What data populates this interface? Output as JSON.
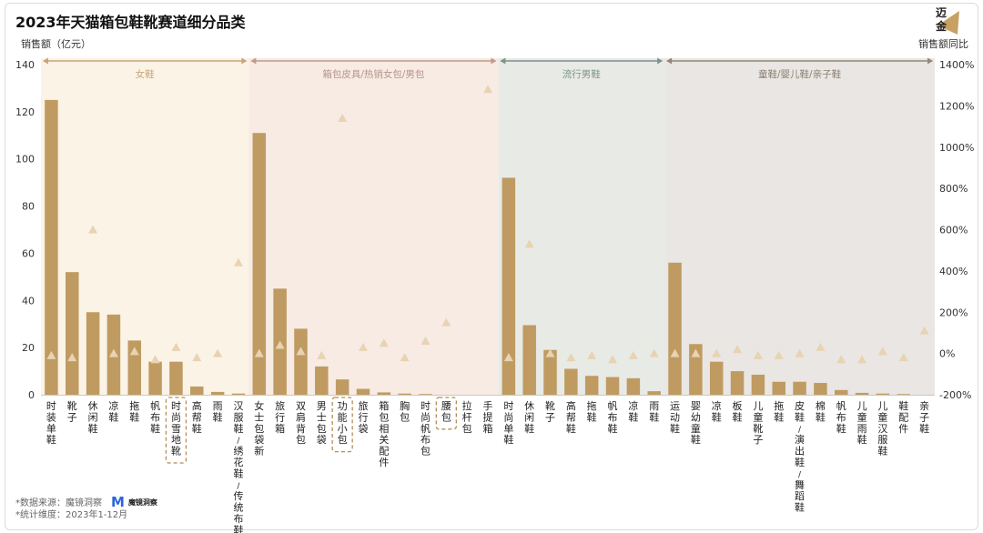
{
  "title": "2023年天猫箱包鞋靴赛道细分品类",
  "y_left_label": "销售额（亿元）",
  "y_right_label": "销售额同比",
  "logo_text": [
    "迈",
    "金"
  ],
  "footnotes": {
    "source_label": "*数据来源：",
    "source_name": "魔镜洞察",
    "brand_mark": "M",
    "brand_name": "魔镜洞察",
    "scope": "*统计维度：2023年1-12月"
  },
  "colors": {
    "bar": "#bf9b62",
    "triangle": "#e8d3b2",
    "highlight_box": "#b58c55",
    "axis_text": "#333333"
  },
  "chart_data": {
    "type": "bar",
    "categories": [
      "时装单鞋",
      "靴子",
      "休闲鞋",
      "凉鞋",
      "拖鞋",
      "帆布鞋",
      "时尚雪地靴",
      "高帮鞋",
      "雨鞋",
      "汉服鞋/绣花鞋/传统布鞋",
      "女士包袋新",
      "旅行箱",
      "双肩背包",
      "男士包袋",
      "功能小包",
      "旅行袋",
      "箱包相关配件",
      "胸包",
      "时尚帆布包",
      "腰包",
      "拉杆包",
      "手提箱",
      "时尚单鞋",
      "休闲鞋",
      "靴子",
      "高帮鞋",
      "拖鞋",
      "帆布鞋",
      "凉鞋",
      "雨鞋",
      "运动鞋",
      "婴幼童鞋",
      "凉鞋",
      "板鞋",
      "儿童靴子",
      "拖鞋",
      "皮鞋/演出鞋/舞蹈鞋",
      "棉鞋",
      "帆布鞋",
      "儿童雨鞋",
      "儿童汉服鞋",
      "鞋配件",
      "亲子鞋"
    ],
    "series": [
      {
        "name": "销售额（亿元）",
        "axis": "left",
        "values": [
          125,
          52,
          35,
          34,
          23,
          14,
          14,
          3.5,
          1.2,
          0.5,
          111,
          45,
          28,
          12,
          6.5,
          2.5,
          1,
          0.5,
          0.3,
          0,
          0,
          0,
          92,
          29.5,
          19,
          11,
          8,
          7.5,
          7,
          1.5,
          56,
          21.5,
          14,
          10,
          8.5,
          5.5,
          5.5,
          5,
          2,
          0.8,
          0.5,
          0.3,
          0
        ]
      },
      {
        "name": "销售额同比",
        "axis": "right",
        "values": [
          -10,
          -20,
          600,
          0,
          10,
          -30,
          30,
          -20,
          0,
          440,
          0,
          40,
          10,
          -10,
          1140,
          30,
          50,
          -20,
          60,
          150,
          null,
          1280,
          -20,
          530,
          0,
          -20,
          -10,
          -30,
          -10,
          0,
          0,
          0,
          0,
          20,
          -10,
          -10,
          0,
          30,
          -30,
          -30,
          10,
          -20,
          110
        ]
      }
    ],
    "groups": [
      {
        "label": "女鞋",
        "start": 0,
        "end": 9,
        "bg": "#fbf3e6",
        "arrow": "#c8a57a",
        "text": "#c8a57a"
      },
      {
        "label": "箱包皮具/热销女包/男包",
        "start": 10,
        "end": 21,
        "bg": "#f7ebe4",
        "arrow": "#c29a8b",
        "text": "#b89488"
      },
      {
        "label": "流行男鞋",
        "start": 22,
        "end": 29,
        "bg": "#e8eae6",
        "arrow": "#7c938d",
        "text": "#7c938d"
      },
      {
        "label": "童鞋/婴儿鞋/亲子鞋",
        "start": 30,
        "end": 42,
        "bg": "#e9e6e3",
        "arrow": "#94877a",
        "text": "#8c7f72"
      }
    ],
    "highlighted": [
      6,
      14,
      19
    ],
    "y_left": {
      "min": 0,
      "max": 140,
      "ticks": [
        "0",
        "20",
        "40",
        "60",
        "80",
        "100",
        "120",
        "140"
      ]
    },
    "y_right": {
      "min": -200,
      "max": 1400,
      "ticks": [
        "-200%",
        "0%",
        "200%",
        "400%",
        "600%",
        "800%",
        "1000%",
        "1200%",
        "1400%"
      ]
    },
    "grid": false
  }
}
